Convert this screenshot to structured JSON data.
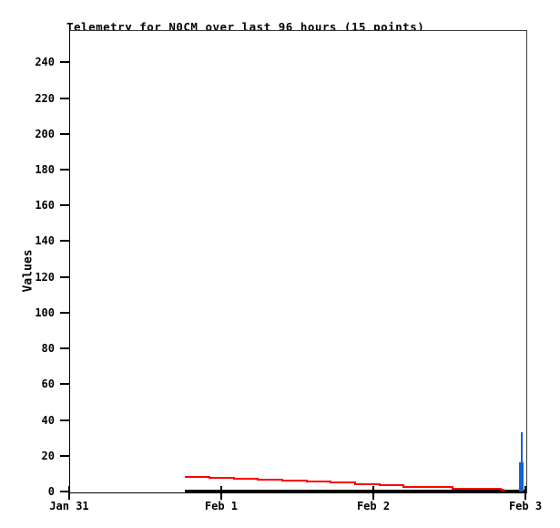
{
  "window": {
    "background": "#ffffff"
  },
  "chart_data": {
    "type": "line",
    "title": "Telemetry for N0CM over last 96 hours (15 points)",
    "ylabel": "Values",
    "xlabel": "",
    "ylim": [
      0,
      258
    ],
    "grid": false,
    "legend": "none",
    "yticks": [
      0,
      20,
      40,
      60,
      80,
      100,
      120,
      140,
      160,
      180,
      200,
      220,
      240
    ],
    "xticks": [
      {
        "label": "Jan 31",
        "frac": 0
      },
      {
        "label": "Feb 1",
        "frac": 0.3333
      },
      {
        "label": "Feb 2",
        "frac": 0.6667
      },
      {
        "label": "Feb 3",
        "frac": 1
      }
    ],
    "x_range_note": "96 hour window, Jan 31 00:00 to Feb 3 (right edge); data begins ~18h in",
    "series": [
      {
        "name": "baseline-black",
        "color": "#000000",
        "style": "line",
        "thickness": 3,
        "points": [
          {
            "frac": 0.2535,
            "v": 0.5
          },
          {
            "frac": 1.0,
            "v": 0.5
          }
        ]
      },
      {
        "name": "telemetry-red",
        "color": "#ff0000",
        "style": "step",
        "thickness": 2,
        "points": [
          {
            "frac": 0.2535,
            "v": 8.2
          },
          {
            "frac": 0.3074,
            "v": 7.7
          },
          {
            "frac": 0.3613,
            "v": 7.2
          },
          {
            "frac": 0.4132,
            "v": 6.6
          },
          {
            "frac": 0.4671,
            "v": 6.3
          },
          {
            "frac": 0.521,
            "v": 5.6
          },
          {
            "frac": 0.5729,
            "v": 4.9
          },
          {
            "frac": 0.6267,
            "v": 4.1
          },
          {
            "frac": 0.6806,
            "v": 3.6
          },
          {
            "frac": 0.7325,
            "v": 2.8
          },
          {
            "frac": 0.7864,
            "v": 2.3
          },
          {
            "frac": 0.8403,
            "v": 1.6
          },
          {
            "frac": 0.8922,
            "v": 1.3
          },
          {
            "frac": 0.9461,
            "v": 0.8
          },
          {
            "frac": 0.952,
            "v": 0.6
          }
        ]
      },
      {
        "name": "spike-blue",
        "color": "#1164cf",
        "style": "bars",
        "bars": [
          {
            "f0": 0.986,
            "f1": 0.997,
            "v0": 0,
            "v1": 16.5
          },
          {
            "f0": 0.99,
            "f1": 0.995,
            "v0": 16.5,
            "v1": 33
          }
        ]
      }
    ]
  },
  "axes": {
    "tick_color": "#000000",
    "text_color": "#000000",
    "border_dark": "#000000",
    "border_light": "#3a3a3a"
  }
}
